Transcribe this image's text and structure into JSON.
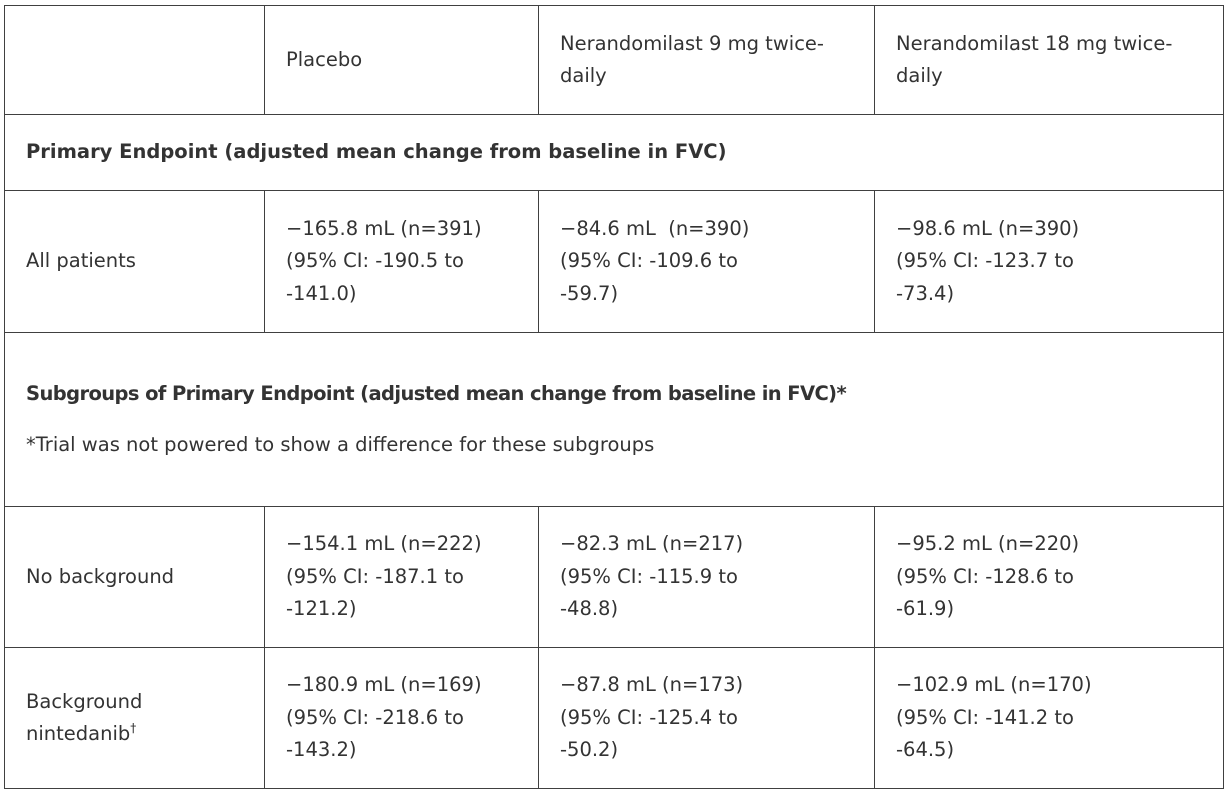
{
  "header": {
    "col1": "",
    "col2": "Placebo",
    "col3": "Nerandomilast 9 mg twice-daily",
    "col4": "Nerandomilast 18 mg twice-daily"
  },
  "primary_section": {
    "title": "Primary Endpoint (adjusted mean change from baseline in FVC)"
  },
  "rows": [
    {
      "label": "All patients",
      "placebo": {
        "line1": "−165.8 mL (n=391)",
        "line2": "(95% CI: -190.5 to",
        "line3": "-141.0)"
      },
      "dose9": {
        "line1": "−84.6 mL  (n=390)",
        "line2": "(95% CI: -109.6 to",
        "line3": "-59.7)"
      },
      "dose18": {
        "line1": "−98.6 mL (n=390)",
        "line2": "(95% CI: -123.7 to",
        "line3": "-73.4)"
      }
    },
    {
      "label": "No background",
      "placebo": {
        "line1": "−154.1 mL (n=222)",
        "line2": "(95% CI: -187.1 to",
        "line3": "-121.2)"
      },
      "dose9": {
        "line1": "−82.3 mL (n=217)",
        "line2": "(95% CI: -115.9 to",
        "line3": "-48.8)"
      },
      "dose18": {
        "line1": "−95.2 mL (n=220)",
        "line2": "(95% CI: -128.6 to",
        "line3": "-61.9)"
      }
    },
    {
      "label_line1": "Background",
      "label_line2": "nintedanib",
      "label_sup": "†",
      "placebo": {
        "line1": "−180.9 mL (n=169)",
        "line2": "(95% CI: -218.6 to",
        "line3": "-143.2)"
      },
      "dose9": {
        "line1": "−87.8 mL (n=173)",
        "line2": "(95% CI: -125.4 to",
        "line3": "-50.2)"
      },
      "dose18": {
        "line1": "−102.9 mL (n=170)",
        "line2": "(95% CI: -141.2 to",
        "line3": "-64.5)"
      }
    }
  ],
  "subgroup_section": {
    "title": "Subgroups of Primary Endpoint (adjusted mean change from baseline in FVC)*",
    "note": "*Trial was not powered to show a difference for these subgroups"
  }
}
